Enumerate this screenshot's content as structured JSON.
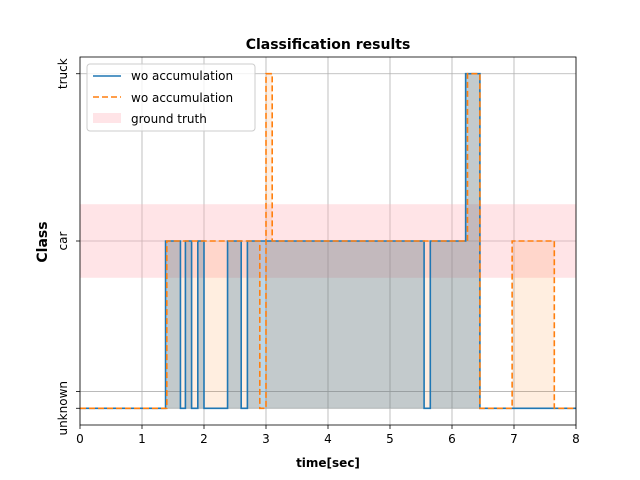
{
  "chart_data": {
    "type": "line",
    "title": "Classification results",
    "xlabel": "time[sec]",
    "ylabel": "Class",
    "xlim": [
      0,
      8
    ],
    "ylim": [
      -0.1,
      2.1
    ],
    "x_ticks": [
      0,
      1,
      2,
      3,
      4,
      5,
      6,
      7,
      8
    ],
    "y_ticks": [
      {
        "value": 0,
        "label": "unknown"
      },
      {
        "value": 0.1,
        "label": ""
      },
      {
        "value": 1,
        "label": "car"
      },
      {
        "value": 2,
        "label": "truck"
      }
    ],
    "grid": true,
    "legend_position": "upper-left",
    "ground_truth": {
      "name": "ground truth",
      "y_range": [
        0.78,
        1.22
      ],
      "color": "#ffb3ba"
    },
    "series": [
      {
        "name": "wo accumulation",
        "color": "#1f77b4",
        "style": "solid",
        "x": [
          0,
          1.38,
          1.38,
          1.62,
          1.62,
          1.7,
          1.7,
          1.8,
          1.8,
          1.9,
          1.9,
          2.0,
          2.0,
          2.38,
          2.38,
          2.6,
          2.6,
          2.7,
          2.7,
          3.05,
          3.05,
          5.55,
          5.55,
          5.65,
          5.65,
          6.22,
          6.22,
          6.45,
          6.45,
          8
        ],
        "y": [
          0,
          0,
          1,
          1,
          0,
          0,
          1,
          1,
          0,
          0,
          1,
          1,
          0,
          0,
          1,
          1,
          0,
          0,
          1,
          1,
          1,
          1,
          0,
          0,
          1,
          1,
          2,
          2,
          0,
          0
        ]
      },
      {
        "name": "wo accumulation",
        "color": "#ff7f0e",
        "style": "dashed",
        "x": [
          0,
          1.4,
          1.4,
          2.9,
          2.9,
          3.0,
          3.0,
          3.1,
          3.1,
          6.25,
          6.25,
          6.45,
          6.45,
          6.97,
          6.97,
          7.65,
          7.65,
          8
        ],
        "y": [
          0,
          0,
          1,
          1,
          0,
          0,
          2,
          2,
          1,
          1,
          2,
          2,
          0,
          0,
          1,
          1,
          0,
          0
        ]
      }
    ]
  }
}
